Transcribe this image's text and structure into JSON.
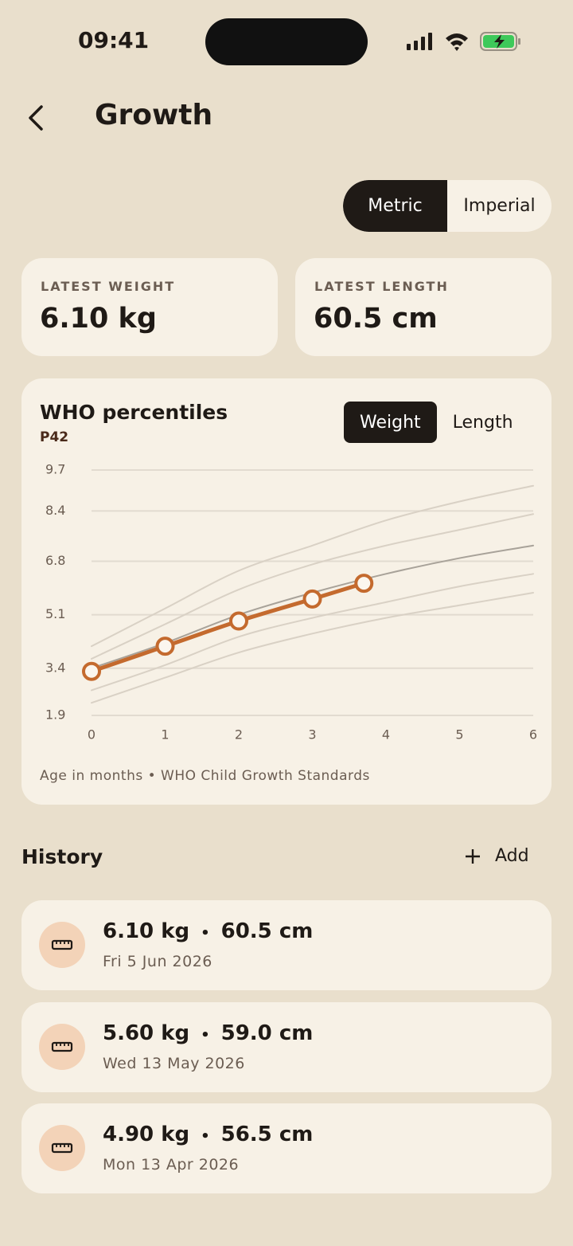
{
  "status_bar": {
    "time": "09:41"
  },
  "header": {
    "title": "Growth"
  },
  "unit_toggle": {
    "options": [
      "Metric",
      "Imperial"
    ],
    "selected": 0
  },
  "stats": [
    {
      "label": "LATEST WEIGHT",
      "value": "6.10 kg"
    },
    {
      "label": "LATEST LENGTH",
      "value": "60.5 cm"
    }
  ],
  "chart_card": {
    "title": "WHO percentiles",
    "percentile": "P42",
    "tabs": [
      "Weight",
      "Length"
    ],
    "selected_tab": 0,
    "footnote": "Age in months • WHO Child Growth Standards"
  },
  "chart_data": {
    "type": "line",
    "xlim": [
      0,
      6
    ],
    "xticks": [
      0,
      1,
      2,
      3,
      4,
      5,
      6
    ],
    "ylim": [
      1.9,
      9.7
    ],
    "yticks": [
      1.9,
      3.4,
      5.1,
      6.8,
      8.4,
      9.7
    ],
    "grid": true,
    "series": [
      {
        "color": "#d9d1c5",
        "x": [
          0,
          1,
          2,
          3,
          4,
          5,
          6
        ],
        "values": [
          4.1,
          5.3,
          6.5,
          7.3,
          8.1,
          8.7,
          9.2
        ]
      },
      {
        "color": "#d9d1c5",
        "x": [
          0,
          1,
          2,
          3,
          4,
          5,
          6
        ],
        "values": [
          3.7,
          4.8,
          5.9,
          6.7,
          7.3,
          7.8,
          8.3
        ]
      },
      {
        "color": "#a8a299",
        "x": [
          0,
          1,
          2,
          3,
          4,
          5,
          6
        ],
        "values": [
          3.4,
          4.2,
          5.1,
          5.8,
          6.4,
          6.9,
          7.3
        ]
      },
      {
        "color": "#d9d1c5",
        "x": [
          0,
          1,
          2,
          3,
          4,
          5,
          6
        ],
        "values": [
          2.7,
          3.5,
          4.4,
          5.0,
          5.5,
          6.0,
          6.4
        ]
      },
      {
        "color": "#d9d1c5",
        "x": [
          0,
          1,
          2,
          3,
          4,
          5,
          6
        ],
        "values": [
          2.3,
          3.1,
          3.9,
          4.5,
          5.0,
          5.4,
          5.8
        ]
      },
      {
        "color": "#c46a2e",
        "x": [
          0,
          1,
          2,
          3,
          3.7
        ],
        "values": [
          3.3,
          4.1,
          4.9,
          5.6,
          6.1
        ],
        "markers": true
      }
    ]
  },
  "history": {
    "title": "History",
    "add": "Add",
    "separator": "•",
    "entries": [
      {
        "weight": "6.10 kg",
        "length": "60.5 cm",
        "date": "Fri 5 Jun 2026"
      },
      {
        "weight": "5.60 kg",
        "length": "59.0 cm",
        "date": "Wed 13 May 2026"
      },
      {
        "weight": "4.90 kg",
        "length": "56.5 cm",
        "date": "Mon 13 Apr 2026"
      }
    ]
  }
}
